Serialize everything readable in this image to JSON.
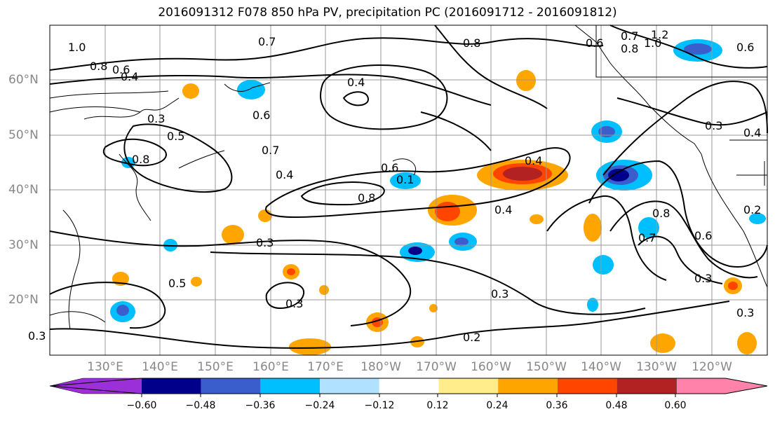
{
  "title": "2016091312 F078 850 hPa PV, precipitation PC (2016091712 - 2016091812)",
  "lat_labels": [
    "60°N",
    "50°N",
    "40°N",
    "30°N",
    "20°N"
  ],
  "lon_labels": [
    "130°E",
    "140°E",
    "150°E",
    "160°E",
    "170°E",
    "180°W",
    "170°W",
    "160°W",
    "150°W",
    "140°W",
    "130°W",
    "120°W"
  ],
  "contour_labels": [
    "1.0",
    "0.8",
    "0.6",
    "0.4",
    "0.7",
    "0.4",
    "0.8",
    "0.6",
    "0.8",
    "0.7",
    "1.2",
    "1.0",
    "0.6",
    "0.3",
    "0.6",
    "0.3",
    "0.5",
    "0.7",
    "0.8",
    "0.4",
    "0.6",
    "0.1",
    "0.8",
    "0.4",
    "0.4",
    "0.8",
    "0.7",
    "0.6",
    "0.2",
    "0.3",
    "0.3",
    "0.3",
    "0.3",
    "0.2",
    "0.5",
    "0.3",
    "0.4",
    "0.3"
  ],
  "colorbar": {
    "ticks": [
      "−0.60",
      "−0.48",
      "−0.36",
      "−0.24",
      "−0.12",
      "0.12",
      "0.24",
      "0.36",
      "0.48",
      "0.60"
    ],
    "colors": [
      "#9b30d9",
      "#00008b",
      "#3a5fcd",
      "#00bfff",
      "#b0e2ff",
      "#ffffff",
      "#ffec8b",
      "#ffa500",
      "#ff4500",
      "#b22222",
      "#ff82ab"
    ]
  }
}
